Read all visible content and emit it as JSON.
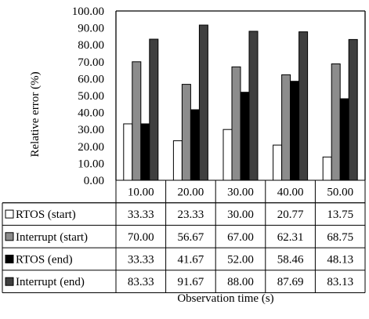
{
  "chart_data": {
    "type": "bar",
    "ylabel": "Relative error (%)",
    "xlabel": "Observation time (s)",
    "ylim": [
      0,
      100
    ],
    "yticks": [
      "0.00",
      "10.00",
      "20.00",
      "30.00",
      "40.00",
      "50.00",
      "60.00",
      "70.00",
      "80.00",
      "90.00",
      "100.00"
    ],
    "categories": [
      "10.00",
      "20.00",
      "30.00",
      "40.00",
      "50.00"
    ],
    "series": [
      {
        "name": "RTOS (start)",
        "color": "#ffffff",
        "values": [
          33.33,
          23.33,
          30.0,
          20.77,
          13.75
        ],
        "labels": [
          "33.33",
          "23.33",
          "30.00",
          "20.77",
          "13.75"
        ]
      },
      {
        "name": "Interrupt (start)",
        "color": "#8c8c8c",
        "values": [
          70.0,
          56.67,
          67.0,
          62.31,
          68.75
        ],
        "labels": [
          "70.00",
          "56.67",
          "67.00",
          "62.31",
          "68.75"
        ]
      },
      {
        "name": "RTOS (end)",
        "color": "#000000",
        "values": [
          33.33,
          41.67,
          52.0,
          58.46,
          48.13
        ],
        "labels": [
          "33.33",
          "41.67",
          "52.00",
          "58.46",
          "48.13"
        ]
      },
      {
        "name": "Interrupt (end)",
        "color": "#3f3f3f",
        "values": [
          83.33,
          91.67,
          88.0,
          87.69,
          83.13
        ],
        "labels": [
          "83.33",
          "91.67",
          "88.00",
          "87.69",
          "83.13"
        ]
      }
    ],
    "grid": false,
    "legend": "data table rows below the plot"
  }
}
